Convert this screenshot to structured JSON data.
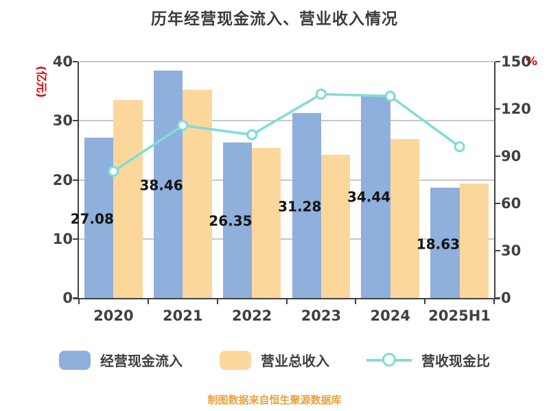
{
  "title": "历年经营现金流入、营业收入情况",
  "footer": "制图数据来自恒生聚源数据库",
  "colors": {
    "cash_bar": "#8fafdc",
    "revenue_bar": "#fcd79c",
    "ratio_line": "#82dcd6",
    "axis_unit_red": "#e60000",
    "footer_orange": "#e9a23b",
    "axis_text": "#404040",
    "gridline": "#c7c7c7"
  },
  "chart_data": {
    "type": "bar",
    "subtype": "grouped bars with overlay line",
    "categories": [
      "2020",
      "2021",
      "2022",
      "2023",
      "2024",
      "2025H1"
    ],
    "series": [
      {
        "name": "经营现金流入",
        "type": "bar",
        "axis": "left",
        "color": "#8fafdc",
        "values": [
          27.08,
          38.46,
          26.35,
          31.28,
          34.44,
          18.63
        ],
        "labels": [
          "27.08亿",
          "38.46亿",
          "26.35亿",
          "31.28亿",
          "34.44亿",
          "18.63亿"
        ]
      },
      {
        "name": "营业总收入",
        "type": "bar",
        "axis": "left",
        "color": "#fcd79c",
        "values": [
          33.5,
          35.2,
          25.4,
          24.2,
          26.9,
          19.4
        ]
      },
      {
        "name": "营收现金比",
        "type": "line",
        "axis": "right",
        "color": "#82dcd6",
        "marker": "circle-white-fill",
        "values": [
          80.4,
          109.5,
          103.6,
          129.4,
          128.1,
          96.0
        ]
      }
    ],
    "left_axis": {
      "label": "(亿元)",
      "min": 0,
      "max": 40,
      "ticks": [
        0,
        10,
        20,
        30,
        40
      ]
    },
    "right_axis": {
      "label": "%",
      "min": 0,
      "max": 150,
      "ticks": [
        0,
        30,
        60,
        90,
        120,
        150
      ]
    },
    "grid": true,
    "legend_position": "bottom"
  }
}
